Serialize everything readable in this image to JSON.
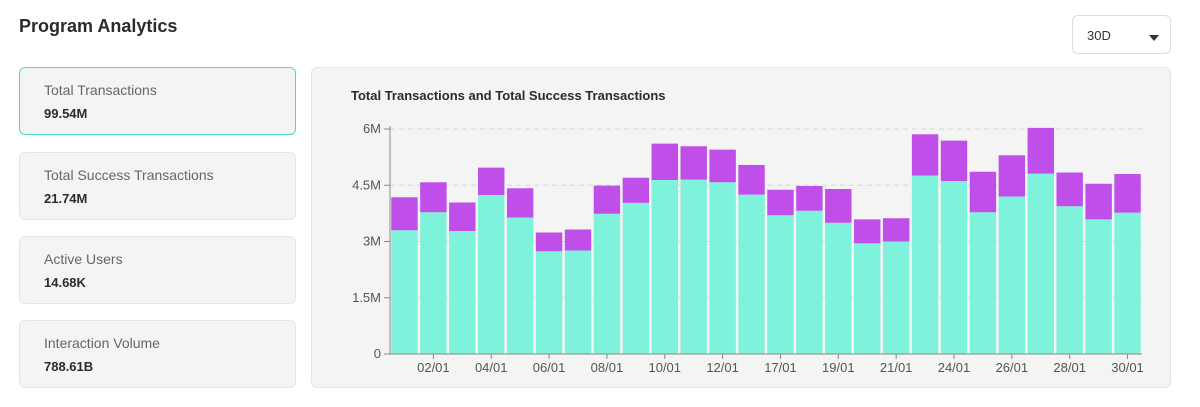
{
  "page": {
    "title": "Program Analytics"
  },
  "range_select": {
    "value": "30D",
    "icon": "chevron-down-icon"
  },
  "stats": [
    {
      "label": "Total Transactions",
      "value": "99.54M",
      "active": true
    },
    {
      "label": "Total Success Transactions",
      "value": "21.74M",
      "active": false
    },
    {
      "label": "Active Users",
      "value": "14.68K",
      "active": false
    },
    {
      "label": "Interaction Volume",
      "value": "788.61B",
      "active": false
    }
  ],
  "colors": {
    "success": "#7ff2dc",
    "failed": "#c04ee8",
    "active_border": "#4fd9bf",
    "grid": "#d6d6d6",
    "axis": "#888888"
  },
  "chart_data": {
    "type": "bar",
    "stacked": true,
    "title": "Total Transactions and Total Success Transactions",
    "y_ticks": [
      "0",
      "1.5M",
      "3M",
      "4.5M",
      "6M"
    ],
    "ylim": [
      0,
      6000000
    ],
    "grid": "horizontal dashed",
    "x_tick_labels": [
      "02/01",
      "04/01",
      "06/01",
      "08/01",
      "10/01",
      "12/01",
      "17/01",
      "19/01",
      "21/01",
      "24/01",
      "26/01",
      "28/01",
      "30/01"
    ],
    "x_tick_positions": [
      1,
      3,
      5,
      7,
      9,
      11,
      13,
      15,
      17,
      19,
      21,
      23,
      25
    ],
    "series": [
      {
        "values": [
          3300000,
          3780000,
          3280000,
          4240000,
          3640000,
          2740000,
          2760000,
          3740000,
          4030000,
          4640000,
          4650000,
          4580000,
          4250000,
          3700000,
          3820000,
          3500000,
          2950000,
          3000000,
          4760000,
          4610000,
          3780000,
          4200000,
          4810000,
          3940000,
          3590000,
          3770000
        ]
      },
      {
        "values": [
          880000,
          800000,
          760000,
          730000,
          780000,
          500000,
          560000,
          750000,
          670000,
          970000,
          890000,
          870000,
          790000,
          680000,
          660000,
          900000,
          640000,
          620000,
          1100000,
          1080000,
          1080000,
          1100000,
          1220000,
          900000,
          950000,
          1030000
        ]
      }
    ]
  }
}
